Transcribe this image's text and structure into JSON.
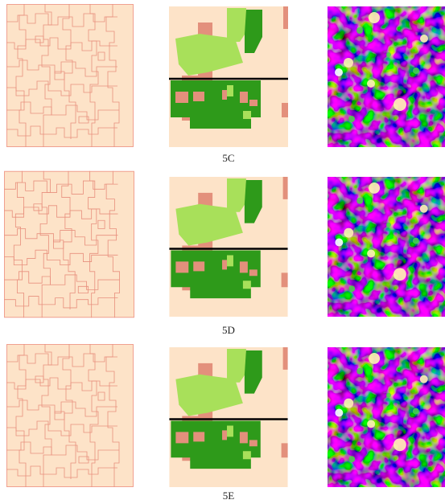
{
  "figure": {
    "labels": [
      "5C",
      "5D",
      "5E"
    ]
  }
}
